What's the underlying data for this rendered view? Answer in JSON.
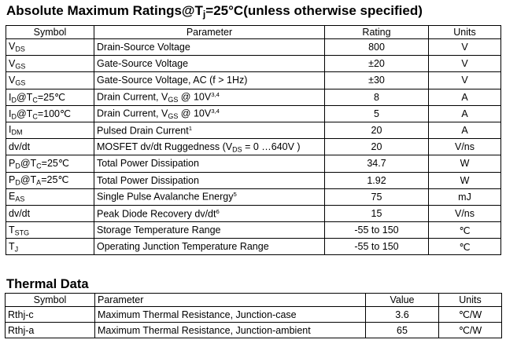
{
  "ratings_title": {
    "prefix": "Absolute Maximum Ratings@T",
    "sub": "j",
    "suffix": "=25°C(unless otherwise specified)"
  },
  "ratings_headers": {
    "symbol": "Symbol",
    "parameter": "Parameter",
    "rating": "Rating",
    "units": "Units"
  },
  "ratings_rows": [
    {
      "sym": "V",
      "sym_sub": "DS",
      "sym_tail": "",
      "sym_sub2": "",
      "sym_tail2": "",
      "param": "Drain-Source Voltage",
      "param_sub": "",
      "param_mid": "",
      "param_sup": "",
      "param_end": "",
      "rating": "800",
      "units": "V"
    },
    {
      "sym": "V",
      "sym_sub": "GS",
      "sym_tail": "",
      "sym_sub2": "",
      "sym_tail2": "",
      "param": "Gate-Source Voltage",
      "param_sub": "",
      "param_mid": "",
      "param_sup": "",
      "param_end": "",
      "rating": "±20",
      "units": "V"
    },
    {
      "sym": "V",
      "sym_sub": "GS",
      "sym_tail": "",
      "sym_sub2": "",
      "sym_tail2": "",
      "param": "Gate-Source Voltage, AC (f > 1Hz)",
      "param_sub": "",
      "param_mid": "",
      "param_sup": "",
      "param_end": "",
      "rating": "±30",
      "units": "V"
    },
    {
      "sym": "I",
      "sym_sub": "D",
      "sym_tail": "@T",
      "sym_sub2": "C",
      "sym_tail2": "=25℃",
      "param": "Drain Current, V",
      "param_sub": "GS",
      "param_mid": " @ 10V",
      "param_sup": "3,4",
      "param_end": "",
      "rating": "8",
      "units": "A"
    },
    {
      "sym": "I",
      "sym_sub": "D",
      "sym_tail": "@T",
      "sym_sub2": "C",
      "sym_tail2": "=100℃",
      "param": "Drain Current, V",
      "param_sub": "GS",
      "param_mid": " @ 10V",
      "param_sup": "3,4",
      "param_end": "",
      "rating": "5",
      "units": "A"
    },
    {
      "sym": "I",
      "sym_sub": "DM",
      "sym_tail": "",
      "sym_sub2": "",
      "sym_tail2": "",
      "param": "Pulsed Drain Current",
      "param_sub": "",
      "param_mid": "",
      "param_sup": "1",
      "param_end": "",
      "rating": "20",
      "units": "A"
    },
    {
      "sym": "dv/dt",
      "sym_sub": "",
      "sym_tail": "",
      "sym_sub2": "",
      "sym_tail2": "",
      "param": "MOSFET dv/dt Ruggedness (V",
      "param_sub": "DS",
      "param_mid": " = 0 …640V )",
      "param_sup": "",
      "param_end": "",
      "rating": "20",
      "units": "V/ns"
    },
    {
      "sym": "P",
      "sym_sub": "D",
      "sym_tail": "@T",
      "sym_sub2": "C",
      "sym_tail2": "=25℃",
      "param": "Total Power Dissipation",
      "param_sub": "",
      "param_mid": "",
      "param_sup": "",
      "param_end": "",
      "rating": "34.7",
      "units": "W"
    },
    {
      "sym": "P",
      "sym_sub": "D",
      "sym_tail": "@T",
      "sym_sub2": "A",
      "sym_tail2": "=25℃",
      "param": "Total Power Dissipation",
      "param_sub": "",
      "param_mid": "",
      "param_sup": "",
      "param_end": "",
      "rating": "1.92",
      "units": "W"
    },
    {
      "sym": "E",
      "sym_sub": "AS",
      "sym_tail": "",
      "sym_sub2": "",
      "sym_tail2": "",
      "param": "Single Pulse Avalanche Energy",
      "param_sub": "",
      "param_mid": "",
      "param_sup": "5",
      "param_end": "",
      "rating": "75",
      "units": "mJ"
    },
    {
      "sym": "dv/dt",
      "sym_sub": "",
      "sym_tail": "",
      "sym_sub2": "",
      "sym_tail2": "",
      "param": "Peak Diode Recovery dv/dt",
      "param_sub": "",
      "param_mid": "",
      "param_sup": "6",
      "param_end": "",
      "rating": "15",
      "units": "V/ns"
    },
    {
      "sym": "T",
      "sym_sub": "STG",
      "sym_tail": "",
      "sym_sub2": "",
      "sym_tail2": "",
      "param": "Storage Temperature Range",
      "param_sub": "",
      "param_mid": "",
      "param_sup": "",
      "param_end": "",
      "rating": "-55 to 150",
      "units": "℃"
    },
    {
      "sym": "T",
      "sym_sub": "J",
      "sym_tail": "",
      "sym_sub2": "",
      "sym_tail2": "",
      "param": "Operating Junction Temperature Range",
      "param_sub": "",
      "param_mid": "",
      "param_sup": "",
      "param_end": "",
      "rating": "-55 to 150",
      "units": "℃"
    }
  ],
  "thermal_title": "Thermal Data",
  "thermal_headers": {
    "symbol": "Symbol",
    "parameter": "Parameter",
    "value": "Value",
    "units": "Units"
  },
  "thermal_rows": [
    {
      "sym": "Rthj-c",
      "param": "Maximum Thermal Resistance, Junction-case",
      "value": "3.6",
      "units": "℃/W"
    },
    {
      "sym": "Rthj-a",
      "param": "Maximum Thermal Resistance, Junction-ambient",
      "value": "65",
      "units": "℃/W"
    }
  ]
}
